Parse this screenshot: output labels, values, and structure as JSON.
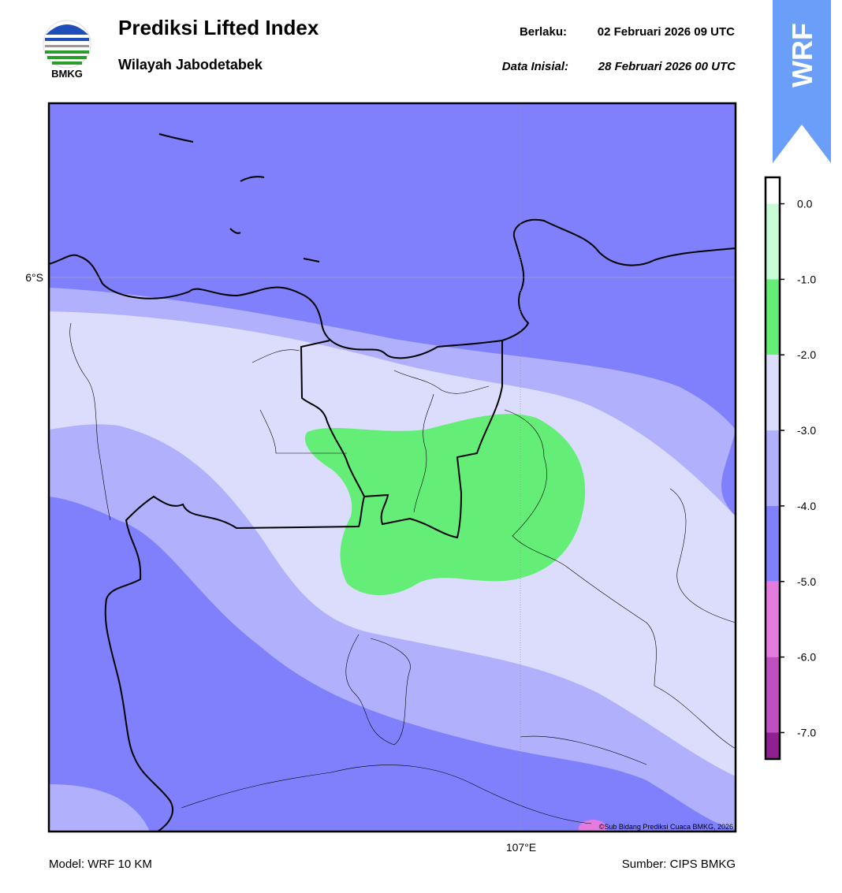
{
  "header": {
    "logo_text": "BMKG",
    "title": "Prediksi Lifted Index",
    "subtitle": "Wilayah Jabodetabek",
    "valid_label": "Berlaku:",
    "valid_time": "02 Februari 2026 09 UTC",
    "init_label": "Data Inisial:",
    "init_time": "28 Februari 2026 00 UTC",
    "badge": "WRF"
  },
  "map": {
    "lat_label": "6°S",
    "lon_label": "107°E",
    "credit": "©Sub Bidang Prediksi Cuaca BMKG, 2026"
  },
  "colorbar": {
    "lim": [
      -7.35,
      0.35
    ],
    "ticks": [
      {
        "value": 0,
        "label": "0.0"
      },
      {
        "value": -1,
        "label": "-1.0"
      },
      {
        "value": -2,
        "label": "-2.0"
      },
      {
        "value": -3,
        "label": "-3.0"
      },
      {
        "value": -4,
        "label": "-4.0"
      },
      {
        "value": -5,
        "label": "-5.0"
      },
      {
        "value": -6,
        "label": "-6.0"
      },
      {
        "value": -7,
        "label": "-7.0"
      }
    ],
    "bands": [
      {
        "from": 0,
        "to": 0.35,
        "color": "#ffffff"
      },
      {
        "from": -1,
        "to": 0,
        "color": "#c8fcd6"
      },
      {
        "from": -2,
        "to": -1,
        "color": "#64ee78"
      },
      {
        "from": -3,
        "to": -2,
        "color": "#dcdcfc"
      },
      {
        "from": -4,
        "to": -3,
        "color": "#b0b0fc"
      },
      {
        "from": -5,
        "to": -4,
        "color": "#8080fc"
      },
      {
        "from": -6,
        "to": -5,
        "color": "#e47ce0"
      },
      {
        "from": -7,
        "to": -6,
        "color": "#c050c0"
      },
      {
        "from": -7.35,
        "to": -7,
        "color": "#902090"
      }
    ]
  },
  "footer": {
    "model": "Model: WRF 10 KM",
    "source": "Sumber: CIPS BMKG"
  }
}
